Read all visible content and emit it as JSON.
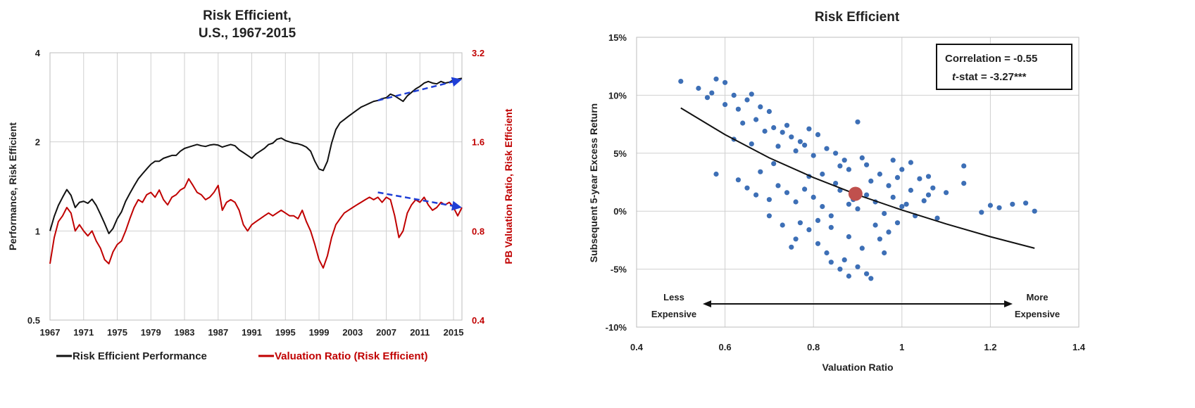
{
  "chart_data": [
    {
      "type": "line",
      "title_lines": [
        "Risk Efficient,",
        "U.S., 1967-2015"
      ],
      "ylabel": "Performance, Risk Efficient",
      "y2label": "PB Valuation Ratio, Risk Efficient",
      "xlim": [
        1967,
        2016
      ],
      "x_ticks": [
        1967,
        1971,
        1975,
        1979,
        1983,
        1987,
        1991,
        1995,
        1999,
        2003,
        2007,
        2011,
        2015
      ],
      "ylim": [
        0.5,
        4
      ],
      "y_scale": "log",
      "y_ticks": [
        0.5,
        1,
        2,
        4
      ],
      "y_tick_labels": [
        "0.5",
        "1",
        "2",
        "4"
      ],
      "y2lim": [
        0.4,
        3.2
      ],
      "y2_ticks": [
        0.4,
        0.8,
        1.6,
        3.2
      ],
      "y2_tick_labels": [
        "0.4",
        "0.8",
        "1.6",
        "3.2"
      ],
      "legend_position": "bottom",
      "series": [
        {
          "name": "Risk Efficient Performance",
          "axis": "left",
          "color": "#111111",
          "x": [
            1967,
            1967.5,
            1968,
            1968.5,
            1969,
            1969.5,
            1970,
            1970.5,
            1971,
            1971.5,
            1972,
            1972.5,
            1973,
            1973.5,
            1974,
            1974.5,
            1975,
            1975.5,
            1976,
            1976.5,
            1977,
            1977.5,
            1978,
            1978.5,
            1979,
            1979.5,
            1980,
            1980.5,
            1981,
            1981.5,
            1982,
            1982.5,
            1983,
            1983.5,
            1984,
            1984.5,
            1985,
            1985.5,
            1986,
            1986.5,
            1987,
            1987.5,
            1988,
            1988.5,
            1989,
            1989.5,
            1990,
            1990.5,
            1991,
            1991.5,
            1992,
            1992.5,
            1993,
            1993.5,
            1994,
            1994.5,
            1995,
            1995.5,
            1996,
            1996.5,
            1997,
            1997.5,
            1998,
            1998.5,
            1999,
            1999.5,
            2000,
            2000.5,
            2001,
            2001.5,
            2002,
            2002.5,
            2003,
            2003.5,
            2004,
            2004.5,
            2005,
            2005.5,
            2006,
            2006.5,
            2007,
            2007.5,
            2008,
            2008.5,
            2009,
            2009.5,
            2010,
            2010.5,
            2011,
            2011.5,
            2012,
            2012.5,
            2013,
            2013.5,
            2014,
            2014.5,
            2015,
            2015.5,
            2016
          ],
          "values": [
            1.0,
            1.12,
            1.22,
            1.3,
            1.38,
            1.32,
            1.2,
            1.25,
            1.26,
            1.24,
            1.28,
            1.22,
            1.14,
            1.06,
            0.98,
            1.02,
            1.1,
            1.16,
            1.26,
            1.34,
            1.42,
            1.5,
            1.56,
            1.62,
            1.68,
            1.72,
            1.72,
            1.76,
            1.78,
            1.8,
            1.8,
            1.86,
            1.9,
            1.92,
            1.94,
            1.96,
            1.94,
            1.93,
            1.95,
            1.96,
            1.95,
            1.92,
            1.94,
            1.96,
            1.94,
            1.88,
            1.84,
            1.8,
            1.76,
            1.82,
            1.86,
            1.9,
            1.96,
            1.98,
            2.04,
            2.06,
            2.02,
            2.0,
            1.98,
            1.97,
            1.95,
            1.92,
            1.86,
            1.72,
            1.62,
            1.6,
            1.72,
            1.98,
            2.2,
            2.32,
            2.38,
            2.44,
            2.5,
            2.56,
            2.62,
            2.66,
            2.7,
            2.74,
            2.76,
            2.8,
            2.82,
            2.9,
            2.86,
            2.8,
            2.74,
            2.86,
            2.94,
            3.02,
            3.08,
            3.16,
            3.2,
            3.16,
            3.14,
            3.2,
            3.16,
            3.18,
            3.24,
            3.26,
            3.28
          ]
        },
        {
          "name": "Valuation Ratio (Risk Efficient)",
          "axis": "right",
          "color": "#c00000",
          "x": [
            1967,
            1967.5,
            1968,
            1968.5,
            1969,
            1969.5,
            1970,
            1970.5,
            1971,
            1971.5,
            1972,
            1972.5,
            1973,
            1973.5,
            1974,
            1974.5,
            1975,
            1975.5,
            1976,
            1976.5,
            1977,
            1977.5,
            1978,
            1978.5,
            1979,
            1979.5,
            1980,
            1980.5,
            1981,
            1981.5,
            1982,
            1982.5,
            1983,
            1983.5,
            1984,
            1984.5,
            1985,
            1985.5,
            1986,
            1986.5,
            1987,
            1987.5,
            1988,
            1988.5,
            1989,
            1989.5,
            1990,
            1990.5,
            1991,
            1991.5,
            1992,
            1992.5,
            1993,
            1993.5,
            1994,
            1994.5,
            1995,
            1995.5,
            1996,
            1996.5,
            1997,
            1997.5,
            1998,
            1998.5,
            1999,
            1999.5,
            2000,
            2000.5,
            2001,
            2001.5,
            2002,
            2002.5,
            2003,
            2003.5,
            2004,
            2004.5,
            2005,
            2005.5,
            2006,
            2006.5,
            2007,
            2007.5,
            2008,
            2008.5,
            2009,
            2009.5,
            2010,
            2010.5,
            2011,
            2011.5,
            2012,
            2012.5,
            2013,
            2013.5,
            2014,
            2014.5,
            2015,
            2015.5,
            2016
          ],
          "values": [
            0.62,
            0.76,
            0.86,
            0.9,
            0.96,
            0.92,
            0.8,
            0.84,
            0.8,
            0.77,
            0.8,
            0.74,
            0.7,
            0.64,
            0.62,
            0.68,
            0.72,
            0.74,
            0.8,
            0.88,
            0.96,
            1.02,
            1.0,
            1.06,
            1.08,
            1.04,
            1.1,
            1.02,
            0.98,
            1.04,
            1.06,
            1.1,
            1.12,
            1.2,
            1.14,
            1.08,
            1.06,
            1.02,
            1.04,
            1.08,
            1.14,
            0.94,
            1.0,
            1.02,
            1.0,
            0.94,
            0.84,
            0.8,
            0.84,
            0.86,
            0.88,
            0.9,
            0.92,
            0.9,
            0.92,
            0.94,
            0.92,
            0.9,
            0.9,
            0.88,
            0.94,
            0.86,
            0.8,
            0.72,
            0.64,
            0.6,
            0.66,
            0.76,
            0.84,
            0.88,
            0.92,
            0.94,
            0.96,
            0.98,
            1.0,
            1.02,
            1.04,
            1.02,
            1.04,
            1.0,
            1.04,
            1.02,
            0.9,
            0.76,
            0.8,
            0.92,
            0.98,
            1.02,
            1.0,
            1.04,
            0.98,
            0.94,
            0.96,
            1.0,
            0.98,
            1.0,
            0.96,
            0.9,
            0.96
          ]
        }
      ],
      "trend_arrows": [
        {
          "axis": "left",
          "color": "#1f3fd6",
          "from": [
            2006,
            2.76
          ],
          "to": [
            2016,
            3.25
          ]
        },
        {
          "axis": "right",
          "color": "#1f3fd6",
          "from": [
            2006,
            1.08
          ],
          "to": [
            2016,
            0.96
          ]
        }
      ]
    },
    {
      "type": "scatter",
      "title": "Risk Efficient",
      "xlabel": "Valuation Ratio",
      "ylabel": "Subsequent 5-year Excess Return",
      "xlim": [
        0.4,
        1.4
      ],
      "x_ticks": [
        0.4,
        0.6,
        0.8,
        1.0,
        1.2,
        1.4
      ],
      "x_tick_labels": [
        "0.4",
        "0.6",
        "0.8",
        "1",
        "1.2",
        "1.4"
      ],
      "ylim": [
        -10,
        15
      ],
      "y_ticks": [
        -10,
        -5,
        0,
        5,
        10,
        15
      ],
      "y_tick_labels": [
        "-10%",
        "-5%",
        "0%",
        "5%",
        "10%",
        "15%"
      ],
      "point_color": "#3d6fb6",
      "fit_curve": {
        "color": "#111111",
        "x": [
          0.5,
          0.6,
          0.7,
          0.8,
          0.9,
          1.0,
          1.1,
          1.2,
          1.3
        ],
        "y": [
          8.9,
          6.6,
          4.6,
          2.9,
          1.4,
          0.1,
          -1.1,
          -2.2,
          -3.2
        ]
      },
      "highlight_point": {
        "x": 0.895,
        "y": 1.5,
        "color": "#c0504d"
      },
      "points": [
        [
          0.5,
          11.2
        ],
        [
          0.54,
          10.6
        ],
        [
          0.57,
          10.2
        ],
        [
          0.58,
          11.4
        ],
        [
          0.6,
          11.1
        ],
        [
          0.56,
          9.8
        ],
        [
          0.6,
          9.2
        ],
        [
          0.62,
          10.0
        ],
        [
          0.63,
          8.8
        ],
        [
          0.65,
          9.6
        ],
        [
          0.66,
          10.1
        ],
        [
          0.68,
          9.0
        ],
        [
          0.7,
          8.6
        ],
        [
          0.64,
          7.6
        ],
        [
          0.67,
          7.9
        ],
        [
          0.71,
          7.2
        ],
        [
          0.73,
          6.8
        ],
        [
          0.75,
          6.4
        ],
        [
          0.77,
          6.0
        ],
        [
          0.79,
          7.1
        ],
        [
          0.81,
          6.6
        ],
        [
          0.72,
          5.6
        ],
        [
          0.76,
          5.2
        ],
        [
          0.8,
          4.8
        ],
        [
          0.83,
          5.4
        ],
        [
          0.85,
          5.0
        ],
        [
          0.87,
          4.4
        ],
        [
          0.9,
          7.7
        ],
        [
          0.88,
          3.6
        ],
        [
          0.92,
          4.0
        ],
        [
          0.95,
          3.2
        ],
        [
          0.98,
          4.4
        ],
        [
          1.0,
          3.6
        ],
        [
          1.02,
          4.2
        ],
        [
          1.04,
          2.8
        ],
        [
          1.07,
          2.0
        ],
        [
          1.1,
          1.6
        ],
        [
          1.14,
          3.9
        ],
        [
          1.14,
          2.4
        ],
        [
          1.18,
          -0.1
        ],
        [
          1.2,
          0.5
        ],
        [
          1.22,
          0.3
        ],
        [
          1.25,
          0.6
        ],
        [
          1.28,
          0.7
        ],
        [
          1.3,
          0.0
        ],
        [
          0.58,
          3.2
        ],
        [
          0.63,
          2.7
        ],
        [
          0.65,
          2.0
        ],
        [
          0.67,
          1.4
        ],
        [
          0.7,
          1.0
        ],
        [
          0.72,
          2.2
        ],
        [
          0.74,
          1.6
        ],
        [
          0.76,
          0.8
        ],
        [
          0.78,
          1.9
        ],
        [
          0.8,
          1.2
        ],
        [
          0.82,
          0.4
        ],
        [
          0.84,
          -0.4
        ],
        [
          0.86,
          1.8
        ],
        [
          0.88,
          0.6
        ],
        [
          0.9,
          0.2
        ],
        [
          0.92,
          1.4
        ],
        [
          0.94,
          0.8
        ],
        [
          0.96,
          -0.2
        ],
        [
          0.98,
          1.2
        ],
        [
          1.0,
          0.4
        ],
        [
          1.02,
          1.8
        ],
        [
          1.05,
          0.9
        ],
        [
          1.08,
          -0.6
        ],
        [
          0.7,
          -0.4
        ],
        [
          0.73,
          -1.2
        ],
        [
          0.76,
          -2.4
        ],
        [
          0.75,
          -3.1
        ],
        [
          0.79,
          -1.6
        ],
        [
          0.81,
          -2.8
        ],
        [
          0.83,
          -3.6
        ],
        [
          0.84,
          -4.4
        ],
        [
          0.86,
          -5.0
        ],
        [
          0.88,
          -5.6
        ],
        [
          0.87,
          -4.2
        ],
        [
          0.9,
          -4.8
        ],
        [
          0.92,
          -5.4
        ],
        [
          0.93,
          -5.8
        ],
        [
          0.91,
          -3.2
        ],
        [
          0.95,
          -2.4
        ],
        [
          0.97,
          -1.8
        ],
        [
          0.99,
          -1.0
        ],
        [
          0.96,
          -3.6
        ],
        [
          0.62,
          6.2
        ],
        [
          0.66,
          5.8
        ],
        [
          0.69,
          6.9
        ],
        [
          0.74,
          7.4
        ],
        [
          0.78,
          5.7
        ],
        [
          0.82,
          3.2
        ],
        [
          0.85,
          2.4
        ],
        [
          0.89,
          1.0
        ],
        [
          0.93,
          2.6
        ],
        [
          0.97,
          2.2
        ],
        [
          1.01,
          0.6
        ],
        [
          1.03,
          -0.4
        ],
        [
          1.06,
          1.4
        ],
        [
          0.68,
          3.4
        ],
        [
          0.71,
          4.1
        ],
        [
          0.79,
          3.0
        ],
        [
          0.86,
          3.9
        ],
        [
          0.91,
          4.6
        ],
        [
          0.99,
          2.9
        ],
        [
          1.06,
          3.0
        ],
        [
          0.84,
          -1.4
        ],
        [
          0.88,
          -2.2
        ],
        [
          0.81,
          -0.8
        ],
        [
          0.77,
          -1.0
        ],
        [
          0.94,
          -1.2
        ]
      ],
      "stat_box": {
        "correlation_label": "Correlation =  -0.55",
        "tstat_prefix": "t",
        "tstat_rest": "-stat = -3.27***"
      },
      "arrow_annotations": {
        "left_top": "Less",
        "left_bottom": "Expensive",
        "right_top": "More",
        "right_bottom": "Expensive"
      }
    }
  ]
}
